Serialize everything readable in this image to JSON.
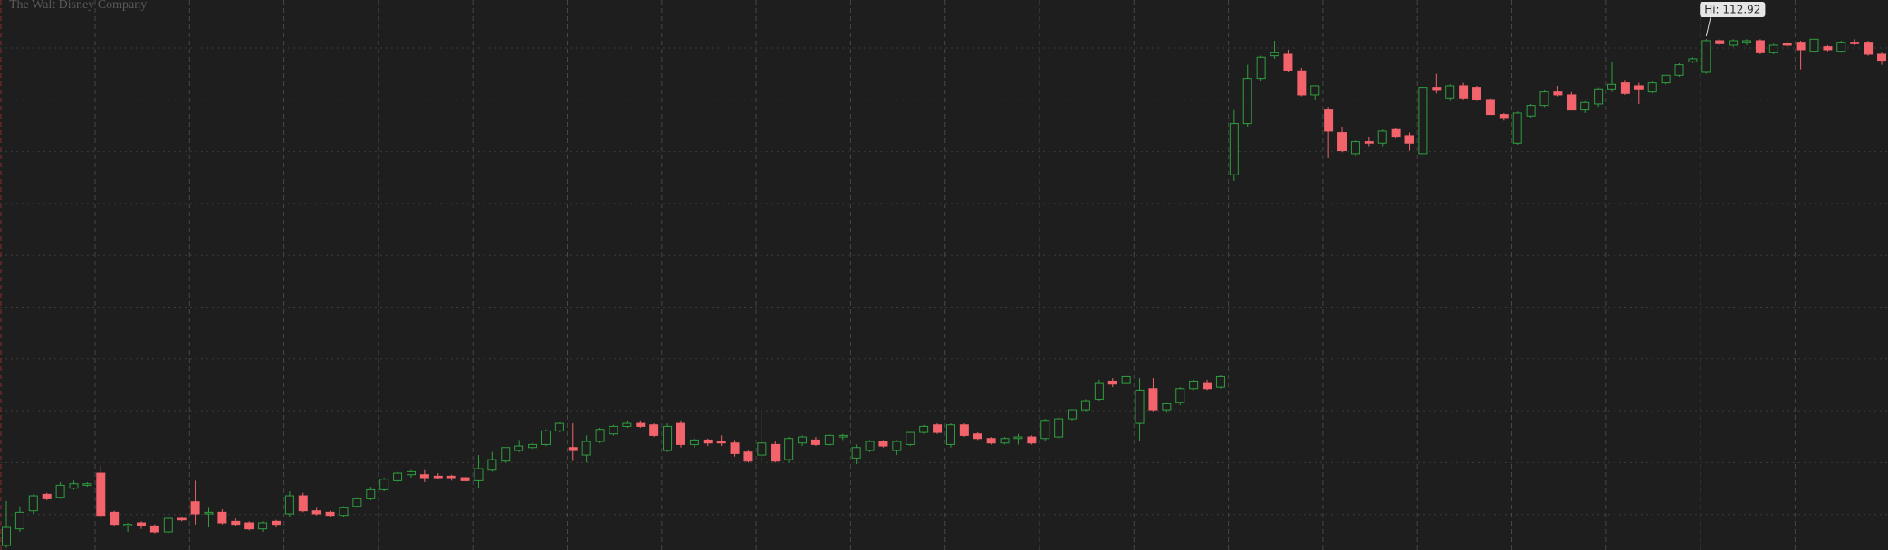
{
  "chart_data": {
    "type": "candlestick",
    "title": "The Walt Disney Company",
    "annotation": {
      "value": 112.92,
      "label": "Hi: 112.92"
    },
    "up_color": "#2f9e3f",
    "down_color": "#f2636b",
    "grid": true,
    "ylim": [
      79,
      115.5
    ],
    "open": [
      79.3,
      80.4,
      81.6,
      82.7,
      82.5,
      83.1,
      83.3,
      84.1,
      81.5,
      80.6,
      80.8,
      80.6,
      80.2,
      81.1,
      82.2,
      81.4,
      81.5,
      80.9,
      80.8,
      80.4,
      80.9,
      81.4,
      82.6,
      81.6,
      81.5,
      81.3,
      81.9,
      82.4,
      83.0,
      83.6,
      84.0,
      84.0,
      83.9,
      83.9,
      83.8,
      83.6,
      84.3,
      84.9,
      85.6,
      85.8,
      86.0,
      86.9,
      85.8,
      85.3,
      86.2,
      86.7,
      87.2,
      87.4,
      87.3,
      85.6,
      87.4,
      86.0,
      86.3,
      86.2,
      86.1,
      85.5,
      85.3,
      86.0,
      85.0,
      86.1,
      86.3,
      86.0,
      86.5,
      85.1,
      85.6,
      86.2,
      85.6,
      86.0,
      86.8,
      87.3,
      86.0,
      87.3,
      86.7,
      86.4,
      86.1,
      86.4,
      86.5,
      86.4,
      86.5,
      87.7,
      88.3,
      89.0,
      90.2,
      90.1,
      87.4,
      89.7,
      88.3,
      88.8,
      89.7,
      90.1,
      89.8,
      103.9,
      107.3,
      110.3,
      111.8,
      111.9,
      110.8,
      109.2,
      108.2,
      106.7,
      105.3,
      106.1,
      106.0,
      106.9,
      106.5,
      105.3,
      109.7,
      109.0,
      109.8,
      109.7,
      108.9,
      107.9,
      106.0,
      107.8,
      108.5,
      109.4,
      109.2,
      108.2,
      108.6,
      109.6,
      110.0,
      109.8,
      109.4,
      110.0,
      110.5,
      111.4,
      110.7,
      112.8,
      112.5,
      112.7,
      112.8,
      112.0,
      112.6,
      112.7,
      112.1,
      112.4,
      112.1,
      112.7,
      112.7,
      111.9
    ],
    "high": [
      82.25,
      81.9,
      82.7,
      82.8,
      83.5,
      83.6,
      83.5,
      84.6,
      81.6,
      80.8,
      80.9,
      80.7,
      81.2,
      81.2,
      83.6,
      81.8,
      81.7,
      81.1,
      80.9,
      80.9,
      81.0,
      82.9,
      82.8,
      81.8,
      81.6,
      81.9,
      82.5,
      83.2,
      83.8,
      84.2,
      84.3,
      84.3,
      84.1,
      84.0,
      83.9,
      85.3,
      85.5,
      85.8,
      86.3,
      86.1,
      87.0,
      87.5,
      87.4,
      86.6,
      87.1,
      87.3,
      87.6,
      87.6,
      87.4,
      87.4,
      87.6,
      86.4,
      86.4,
      86.6,
      86.3,
      85.6,
      88.2,
      86.2,
      86.5,
      86.6,
      86.5,
      86.7,
      86.7,
      86.0,
      86.3,
      86.3,
      86.3,
      86.8,
      87.3,
      87.4,
      87.4,
      87.4,
      86.8,
      86.5,
      86.5,
      86.7,
      86.6,
      87.7,
      87.8,
      88.3,
      89.0,
      90.3,
      90.4,
      90.6,
      90.4,
      90.4,
      88.8,
      89.8,
      90.3,
      90.3,
      90.6,
      108.2,
      111.2,
      111.8,
      112.8,
      112.2,
      111.0,
      109.8,
      108.4,
      107.1,
      106.2,
      106.4,
      106.9,
      107.0,
      106.7,
      109.8,
      110.6,
      109.9,
      110.0,
      109.8,
      109.0,
      108.0,
      108.1,
      108.6,
      109.5,
      109.8,
      109.4,
      108.8,
      109.7,
      111.4,
      110.2,
      110.0,
      110.1,
      110.5,
      111.3,
      111.7,
      112.92,
      112.9,
      112.9,
      112.9,
      112.9,
      112.6,
      112.8,
      112.8,
      112.9,
      112.5,
      112.8,
      112.9,
      112.8,
      112.0
    ],
    "low": [
      79.15,
      80.2,
      81.4,
      82.3,
      82.4,
      83.0,
      83.2,
      81.1,
      80.6,
      80.2,
      80.4,
      80.1,
      80.1,
      80.9,
      80.7,
      80.5,
      80.7,
      80.6,
      80.3,
      80.2,
      80.5,
      81.2,
      81.5,
      81.3,
      81.2,
      81.2,
      81.8,
      82.3,
      82.9,
      83.5,
      83.8,
      83.5,
      83.7,
      83.6,
      83.5,
      83.1,
      84.2,
      84.8,
      85.5,
      85.7,
      85.9,
      86.8,
      84.9,
      84.8,
      86.1,
      86.6,
      87.1,
      87.1,
      86.5,
      85.5,
      85.8,
      85.8,
      85.9,
      85.9,
      85.2,
      84.8,
      84.9,
      84.8,
      84.8,
      85.9,
      85.9,
      85.9,
      86.3,
      84.7,
      85.5,
      85.8,
      85.3,
      85.9,
      86.7,
      86.7,
      85.8,
      86.5,
      86.3,
      86.0,
      86.0,
      86.0,
      86.0,
      86.2,
      86.4,
      87.6,
      88.2,
      88.9,
      89.8,
      90.0,
      86.2,
      88.2,
      88.1,
      88.6,
      89.6,
      89.6,
      89.7,
      103.5,
      107.1,
      110.1,
      111.6,
      110.7,
      109.1,
      108.9,
      105.0,
      105.4,
      105.1,
      105.8,
      105.8,
      106.3,
      105.5,
      105.2,
      109.3,
      108.8,
      108.9,
      108.8,
      107.9,
      107.5,
      105.9,
      107.7,
      108.4,
      109.1,
      108.2,
      108.0,
      108.4,
      109.4,
      109.2,
      108.6,
      109.3,
      109.9,
      110.4,
      111.3,
      110.6,
      112.5,
      112.4,
      112.5,
      111.9,
      111.9,
      112.4,
      110.9,
      112.0,
      112.1,
      112.0,
      112.5,
      111.8,
      111.2
    ],
    "close": [
      80.5,
      81.5,
      82.6,
      82.4,
      83.3,
      83.4,
      83.4,
      81.3,
      80.7,
      80.7,
      80.6,
      80.2,
      81.1,
      81.0,
      81.4,
      81.5,
      80.8,
      80.7,
      80.4,
      80.8,
      80.7,
      82.6,
      81.6,
      81.4,
      81.3,
      81.8,
      82.4,
      83.0,
      83.7,
      84.1,
      84.2,
      83.8,
      83.8,
      83.8,
      83.6,
      84.4,
      85.0,
      85.8,
      85.9,
      86.0,
      86.9,
      87.4,
      85.6,
      86.2,
      87.0,
      87.2,
      87.4,
      87.2,
      86.6,
      87.2,
      86.0,
      86.3,
      86.1,
      86.1,
      85.4,
      84.9,
      86.1,
      84.9,
      86.4,
      86.5,
      86.0,
      86.6,
      86.6,
      85.8,
      86.2,
      85.9,
      86.2,
      86.8,
      87.2,
      86.8,
      87.3,
      86.6,
      86.4,
      86.1,
      86.4,
      86.5,
      86.1,
      87.6,
      87.7,
      88.3,
      88.9,
      90.1,
      90.0,
      90.5,
      89.6,
      88.3,
      88.7,
      89.7,
      90.2,
      89.7,
      90.5,
      107.3,
      110.3,
      111.7,
      112.0,
      110.8,
      109.2,
      109.8,
      106.8,
      105.5,
      106.1,
      106.0,
      106.8,
      106.4,
      106.0,
      109.7,
      109.5,
      109.8,
      109.0,
      108.9,
      107.9,
      107.7,
      108.0,
      108.5,
      109.4,
      109.2,
      108.2,
      108.7,
      109.6,
      109.9,
      109.3,
      109.6,
      110.0,
      110.5,
      111.2,
      111.6,
      112.8,
      112.6,
      112.8,
      112.8,
      112.0,
      112.5,
      112.5,
      112.2,
      112.9,
      112.2,
      112.7,
      112.6,
      111.9,
      111.5
    ]
  }
}
